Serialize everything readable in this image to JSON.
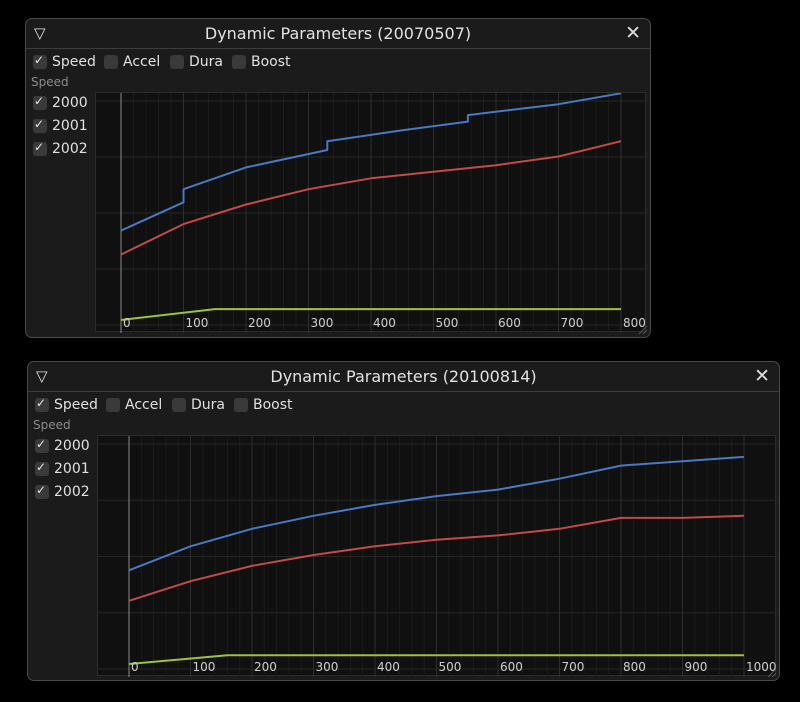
{
  "windows": [
    {
      "title": "Dynamic Parameters (20070507)",
      "toggles": [
        {
          "label": "Speed",
          "checked": true
        },
        {
          "label": "Accel",
          "checked": false
        },
        {
          "label": "Dura",
          "checked": false
        },
        {
          "label": "Boost",
          "checked": false
        }
      ],
      "group_label": "Speed",
      "series_toggles": [
        {
          "label": "2000",
          "checked": true
        },
        {
          "label": "2001",
          "checked": true
        },
        {
          "label": "2002",
          "checked": true
        }
      ]
    },
    {
      "title": "Dynamic Parameters (20100814)",
      "toggles": [
        {
          "label": "Speed",
          "checked": true
        },
        {
          "label": "Accel",
          "checked": false
        },
        {
          "label": "Dura",
          "checked": false
        },
        {
          "label": "Boost",
          "checked": false
        }
      ],
      "group_label": "Speed",
      "series_toggles": [
        {
          "label": "2000",
          "checked": true
        },
        {
          "label": "2001",
          "checked": true
        },
        {
          "label": "2002",
          "checked": true
        }
      ]
    }
  ],
  "icons": {
    "collapse": "triangle-down-icon",
    "close": "close-x-icon"
  },
  "colors": {
    "series_2000": "#4a78c2",
    "series_2001": "#c24a4a",
    "series_2002": "#9ec23a"
  },
  "chart_data": [
    {
      "type": "line",
      "x_ticks": [
        0,
        100,
        200,
        300,
        400,
        500,
        600,
        700,
        800
      ],
      "xlim": [
        0,
        800
      ],
      "ylim": [
        0,
        100
      ],
      "grid": true,
      "series": [
        {
          "name": "2000",
          "x": [
            0,
            100,
            100,
            200,
            330,
            330,
            450,
            555,
            555,
            700,
            800
          ],
          "y": [
            41,
            54,
            60,
            70,
            78,
            82,
            87,
            91,
            94,
            99,
            104
          ]
        },
        {
          "name": "2001",
          "x": [
            0,
            100,
            200,
            300,
            400,
            500,
            600,
            700,
            800
          ],
          "y": [
            30,
            44,
            53,
            60,
            65,
            68,
            71,
            75,
            82
          ]
        },
        {
          "name": "2002",
          "x": [
            0,
            150,
            800
          ],
          "y": [
            0,
            5,
            5
          ]
        }
      ]
    },
    {
      "type": "line",
      "x_ticks": [
        0,
        100,
        200,
        300,
        400,
        500,
        600,
        700,
        800,
        900,
        1000
      ],
      "xlim": [
        0,
        1000
      ],
      "ylim": [
        0,
        100
      ],
      "grid": true,
      "series": [
        {
          "name": "2000",
          "x": [
            0,
            100,
            200,
            300,
            400,
            500,
            600,
            700,
            800,
            900,
            1000
          ],
          "y": [
            43,
            54,
            62,
            68,
            73,
            77,
            80,
            85,
            91,
            93,
            95
          ]
        },
        {
          "name": "2001",
          "x": [
            0,
            100,
            200,
            300,
            400,
            500,
            600,
            700,
            800,
            900,
            1000
          ],
          "y": [
            29,
            38,
            45,
            50,
            54,
            57,
            59,
            62,
            67,
            67,
            68
          ]
        },
        {
          "name": "2002",
          "x": [
            0,
            160,
            1000
          ],
          "y": [
            0,
            4,
            4
          ]
        }
      ]
    }
  ]
}
